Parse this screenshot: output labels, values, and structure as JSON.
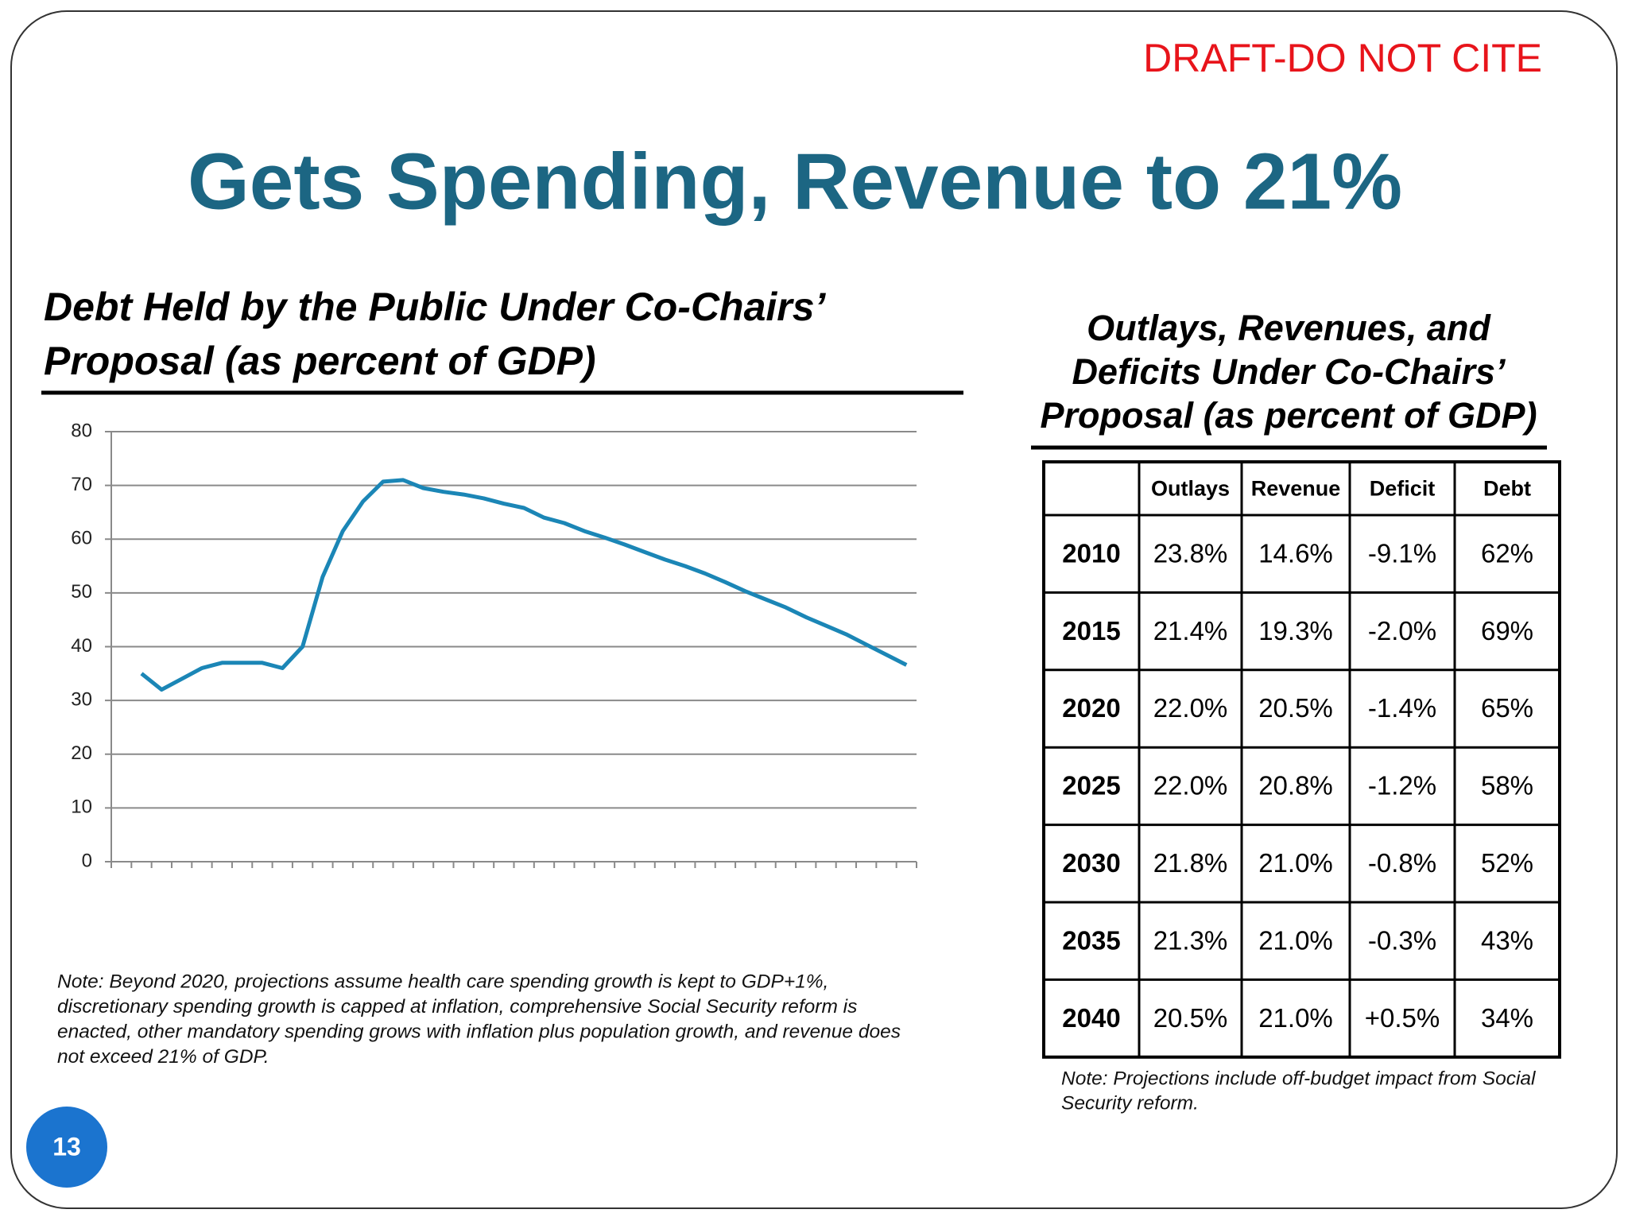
{
  "draft_notice": "DRAFT-DO NOT CITE",
  "title": "Gets Spending, Revenue to 21%",
  "chart_data": {
    "type": "line",
    "title": [
      "Debt Held by the Public Under Co-Chairs’",
      "Proposal (as percent of GDP)"
    ],
    "categories": [
      null,
      null,
      null,
      null,
      null,
      null,
      null,
      null,
      null,
      null,
      null,
      null,
      null,
      null,
      null,
      null,
      null,
      null,
      null,
      null,
      null,
      null,
      null,
      null,
      null,
      null,
      null,
      null,
      null,
      null,
      null,
      null,
      null,
      null,
      null,
      null,
      null,
      null,
      null,
      null
    ],
    "values": [
      null,
      35,
      32,
      34,
      36,
      37,
      37,
      37,
      36,
      40,
      53,
      61.5,
      67,
      70.7,
      71,
      69.5,
      68.8,
      68.3,
      67.6,
      66.6,
      65.8,
      64,
      63,
      61.5,
      60.3,
      59,
      57.6,
      56.2,
      55,
      53.6,
      52,
      50.3,
      48.8,
      47.3,
      45.5,
      43.9,
      42.3,
      40.4,
      38.5,
      36.6
    ],
    "color": "#1b86b6",
    "ylim": [
      0,
      80
    ],
    "yticks": [
      0,
      10,
      20,
      30,
      40,
      50,
      60,
      70,
      80
    ],
    "grid": true
  },
  "chart_note": [
    "Note: Beyond 2020, projections assume health care spending growth is kept to GDP+1%,",
    "discretionary spending growth is capped at inflation, comprehensive Social Security reform is",
    "enacted, other mandatory spending grows with inflation plus population growth, and revenue does",
    "not exceed 21% of GDP."
  ],
  "table": {
    "title": [
      "Outlays, Revenues, and",
      "Deficits Under Co-Chairs’",
      "Proposal (as percent of GDP)"
    ],
    "header": [
      "Outlays",
      "Revenue",
      "Deficit",
      "Debt"
    ],
    "rows": [
      [
        "2010",
        "23.8%",
        "14.6%",
        "-9.1%",
        "62%"
      ],
      [
        "2015",
        "21.4%",
        "19.3%",
        "-2.0%",
        "69%"
      ],
      [
        "2020",
        "22.0%",
        "20.5%",
        "-1.4%",
        "65%"
      ],
      [
        "2025",
        "22.0%",
        "20.8%",
        "-1.2%",
        "58%"
      ],
      [
        "2030",
        "21.8%",
        "21.0%",
        "-0.8%",
        "52%"
      ],
      [
        "2035",
        "21.3%",
        "21.0%",
        "-0.3%",
        "43%"
      ],
      [
        "2040",
        "20.5%",
        "21.0%",
        "+0.5%",
        "34%"
      ]
    ]
  },
  "table_note": [
    "Note: Projections include off-budget impact from Social",
    "Security reform."
  ],
  "page_number": "13"
}
